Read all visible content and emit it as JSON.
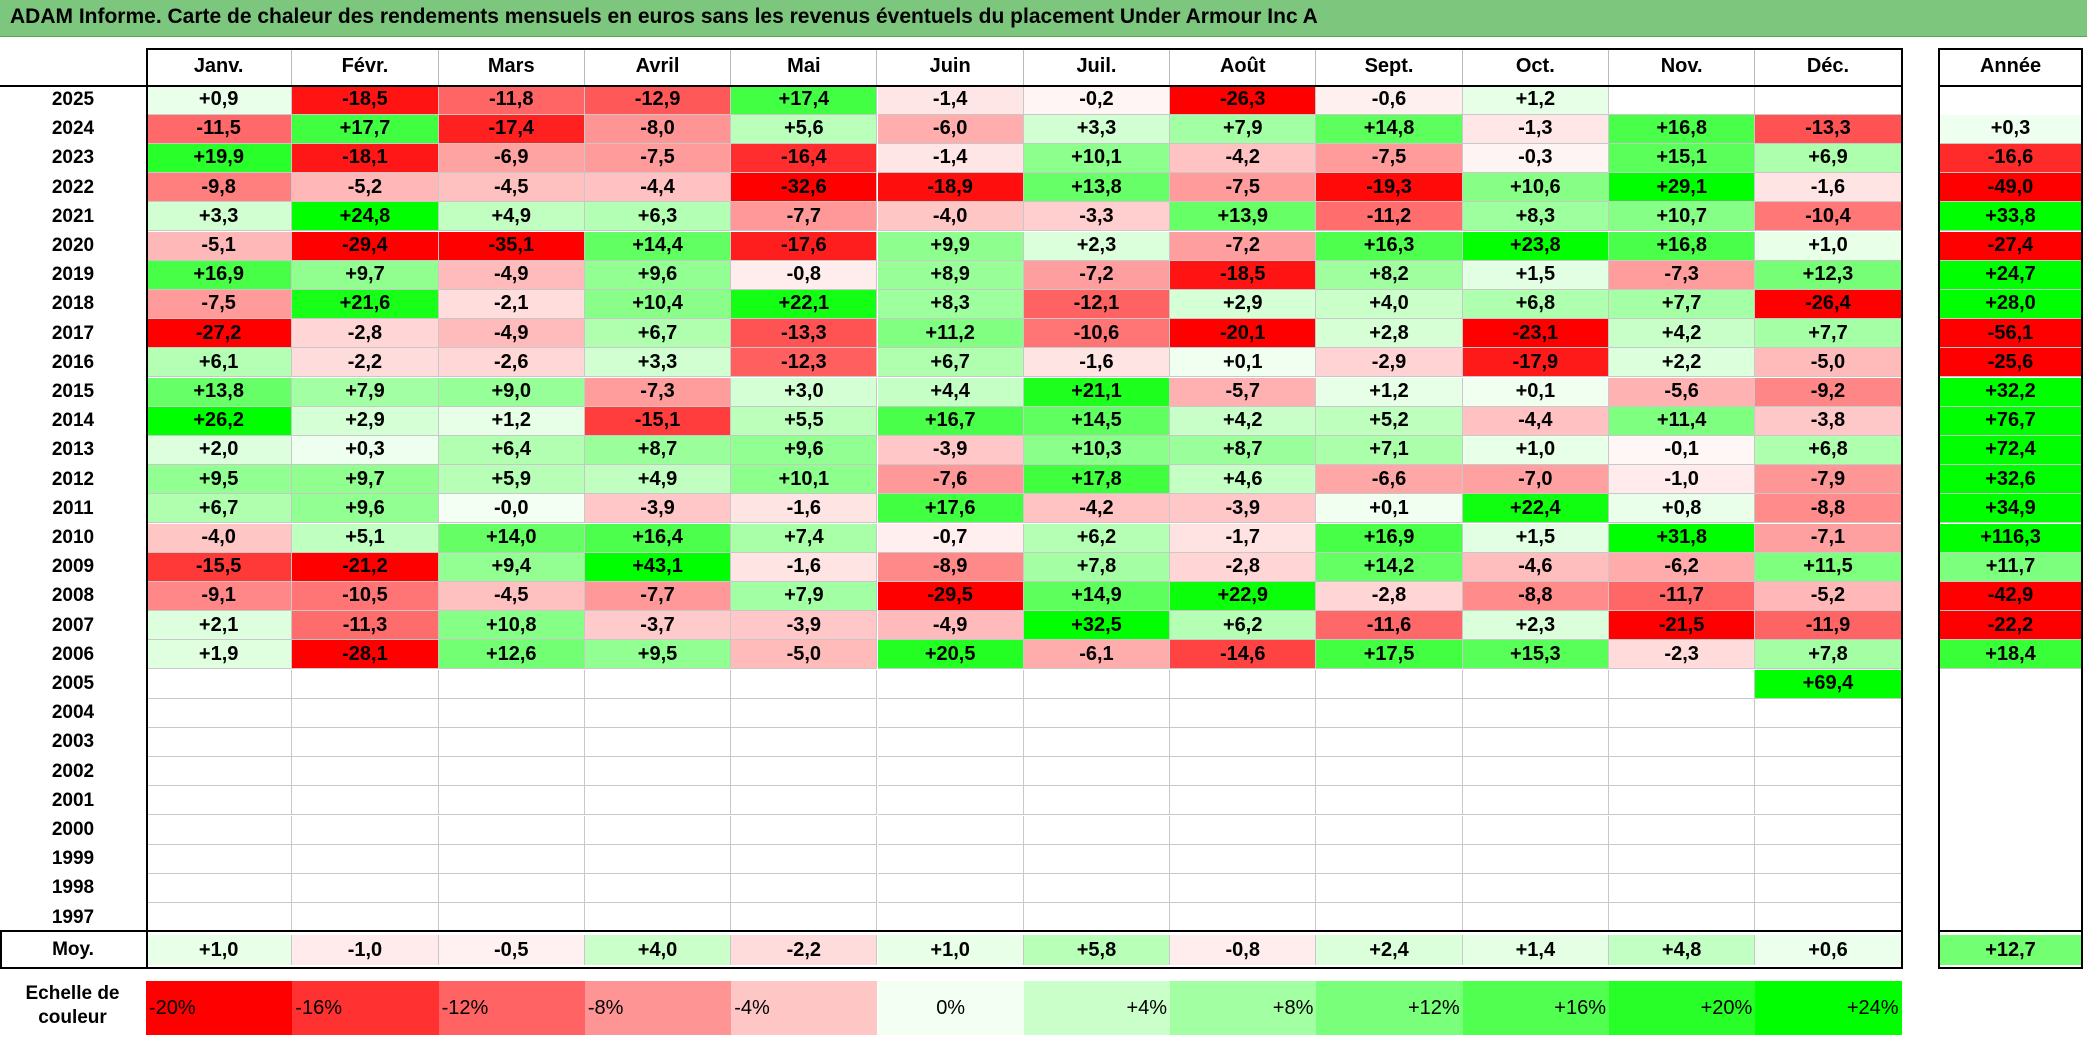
{
  "title": "ADAM Informe. Carte de chaleur des rendements mensuels en euros sans les revenus éventuels du placement Under Armour Inc A",
  "chart_data": {
    "type": "heatmap",
    "months": [
      "Janv.",
      "Févr.",
      "Mars",
      "Avril",
      "Mai",
      "Juin",
      "Juil.",
      "Août",
      "Sept.",
      "Oct.",
      "Nov.",
      "Déc."
    ],
    "year_header": "Année",
    "years": [
      "2025",
      "2024",
      "2023",
      "2022",
      "2021",
      "2020",
      "2019",
      "2018",
      "2017",
      "2016",
      "2015",
      "2014",
      "2013",
      "2012",
      "2011",
      "2010",
      "2009",
      "2008",
      "2007",
      "2006",
      "2005",
      "2004",
      "2003",
      "2002",
      "2001",
      "2000",
      "1999",
      "1998",
      "1997"
    ],
    "values": [
      [
        "+0,9",
        "-18,5",
        "-11,8",
        "-12,9",
        "+17,4",
        "-1,4",
        "-0,2",
        "-26,3",
        "-0,6",
        "+1,2",
        "",
        ""
      ],
      [
        "-11,5",
        "+17,7",
        "-17,4",
        "-8,0",
        "+5,6",
        "-6,0",
        "+3,3",
        "+7,9",
        "+14,8",
        "-1,3",
        "+16,8",
        "-13,3"
      ],
      [
        "+19,9",
        "-18,1",
        "-6,9",
        "-7,5",
        "-16,4",
        "-1,4",
        "+10,1",
        "-4,2",
        "-7,5",
        "-0,3",
        "+15,1",
        "+6,9"
      ],
      [
        "-9,8",
        "-5,2",
        "-4,5",
        "-4,4",
        "-32,6",
        "-18,9",
        "+13,8",
        "-7,5",
        "-19,3",
        "+10,6",
        "+29,1",
        "-1,6"
      ],
      [
        "+3,3",
        "+24,8",
        "+4,9",
        "+6,3",
        "-7,7",
        "-4,0",
        "-3,3",
        "+13,9",
        "-11,2",
        "+8,3",
        "+10,7",
        "-10,4"
      ],
      [
        "-5,1",
        "-29,4",
        "-35,1",
        "+14,4",
        "-17,6",
        "+9,9",
        "+2,3",
        "-7,2",
        "+16,3",
        "+23,8",
        "+16,8",
        "+1,0"
      ],
      [
        "+16,9",
        "+9,7",
        "-4,9",
        "+9,6",
        "-0,8",
        "+8,9",
        "-7,2",
        "-18,5",
        "+8,2",
        "+1,5",
        "-7,3",
        "+12,3"
      ],
      [
        "-7,5",
        "+21,6",
        "-2,1",
        "+10,4",
        "+22,1",
        "+8,3",
        "-12,1",
        "+2,9",
        "+4,0",
        "+6,8",
        "+7,7",
        "-26,4"
      ],
      [
        "-27,2",
        "-2,8",
        "-4,9",
        "+6,7",
        "-13,3",
        "+11,2",
        "-10,6",
        "-20,1",
        "+2,8",
        "-23,1",
        "+4,2",
        "+7,7"
      ],
      [
        "+6,1",
        "-2,2",
        "-2,6",
        "+3,3",
        "-12,3",
        "+6,7",
        "-1,6",
        "+0,1",
        "-2,9",
        "-17,9",
        "+2,2",
        "-5,0"
      ],
      [
        "+13,8",
        "+7,9",
        "+9,0",
        "-7,3",
        "+3,0",
        "+4,4",
        "+21,1",
        "-5,7",
        "+1,2",
        "+0,1",
        "-5,6",
        "-9,2"
      ],
      [
        "+26,2",
        "+2,9",
        "+1,2",
        "-15,1",
        "+5,5",
        "+16,7",
        "+14,5",
        "+4,2",
        "+5,2",
        "-4,4",
        "+11,4",
        "-3,8"
      ],
      [
        "+2,0",
        "+0,3",
        "+6,4",
        "+8,7",
        "+9,6",
        "-3,9",
        "+10,3",
        "+8,7",
        "+7,1",
        "+1,0",
        "-0,1",
        "+6,8"
      ],
      [
        "+9,5",
        "+9,7",
        "+5,9",
        "+4,9",
        "+10,1",
        "-7,6",
        "+17,8",
        "+4,6",
        "-6,6",
        "-7,0",
        "-1,0",
        "-7,9"
      ],
      [
        "+6,7",
        "+9,6",
        "-0,0",
        "-3,9",
        "-1,6",
        "+17,6",
        "-4,2",
        "-3,9",
        "+0,1",
        "+22,4",
        "+0,8",
        "-8,8"
      ],
      [
        "-4,0",
        "+5,1",
        "+14,0",
        "+16,4",
        "+7,4",
        "-0,7",
        "+6,2",
        "-1,7",
        "+16,9",
        "+1,5",
        "+31,8",
        "-7,1"
      ],
      [
        "-15,5",
        "-21,2",
        "+9,4",
        "+43,1",
        "-1,6",
        "-8,9",
        "+7,8",
        "-2,8",
        "+14,2",
        "-4,6",
        "-6,2",
        "+11,5"
      ],
      [
        "-9,1",
        "-10,5",
        "-4,5",
        "-7,7",
        "+7,9",
        "-29,5",
        "+14,9",
        "+22,9",
        "-2,8",
        "-8,8",
        "-11,7",
        "-5,2"
      ],
      [
        "+2,1",
        "-11,3",
        "+10,8",
        "-3,7",
        "-3,9",
        "-4,9",
        "+32,5",
        "+6,2",
        "-11,6",
        "+2,3",
        "-21,5",
        "-11,9"
      ],
      [
        "+1,9",
        "-28,1",
        "+12,6",
        "+9,5",
        "-5,0",
        "+20,5",
        "-6,1",
        "-14,6",
        "+17,5",
        "+15,3",
        "-2,3",
        "+7,8"
      ],
      [
        "",
        "",
        "",
        "",
        "",
        "",
        "",
        "",
        "",
        "",
        "",
        "+69,4"
      ],
      [
        "",
        "",
        "",
        "",
        "",
        "",
        "",
        "",
        "",
        "",
        "",
        ""
      ],
      [
        "",
        "",
        "",
        "",
        "",
        "",
        "",
        "",
        "",
        "",
        "",
        ""
      ],
      [
        "",
        "",
        "",
        "",
        "",
        "",
        "",
        "",
        "",
        "",
        "",
        ""
      ],
      [
        "",
        "",
        "",
        "",
        "",
        "",
        "",
        "",
        "",
        "",
        "",
        ""
      ],
      [
        "",
        "",
        "",
        "",
        "",
        "",
        "",
        "",
        "",
        "",
        "",
        ""
      ],
      [
        "",
        "",
        "",
        "",
        "",
        "",
        "",
        "",
        "",
        "",
        "",
        ""
      ],
      [
        "",
        "",
        "",
        "",
        "",
        "",
        "",
        "",
        "",
        "",
        "",
        ""
      ],
      [
        "",
        "",
        "",
        "",
        "",
        "",
        "",
        "",
        "",
        "",
        "",
        ""
      ]
    ],
    "annual": [
      "",
      "+0,3",
      "-16,6",
      "-49,0",
      "+33,8",
      "-27,4",
      "+24,7",
      "+28,0",
      "-56,1",
      "-25,6",
      "+32,2",
      "+76,7",
      "+72,4",
      "+32,6",
      "+34,9",
      "+116,3",
      "+11,7",
      "-42,9",
      "-22,2",
      "+18,4",
      "",
      "",
      "",
      "",
      "",
      "",
      "",
      "",
      ""
    ],
    "average_label": "Moy.",
    "average": [
      "+1,0",
      "-1,0",
      "-0,5",
      "+4,0",
      "-2,2",
      "+1,0",
      "+5,8",
      "-0,8",
      "+2,4",
      "+1,4",
      "+4,8",
      "+0,6"
    ],
    "average_annual": "+12,7",
    "legend_label_line1": "Echelle de",
    "legend_label_line2": "couleur",
    "scale": [
      "-20%",
      "-16%",
      "-12%",
      "-8%",
      "-4%",
      "0%",
      "+4%",
      "+8%",
      "+12%",
      "+16%",
      "+20%",
      "+24%"
    ],
    "scale_values": [
      -20,
      -16,
      -12,
      -8,
      -4,
      0,
      4,
      8,
      12,
      16,
      20,
      24
    ],
    "colors": {
      "negative_full": "#ff0000",
      "positive_full": "#00ff00",
      "neutral": "#ffffff",
      "title_bar": "#7dc67d"
    }
  }
}
